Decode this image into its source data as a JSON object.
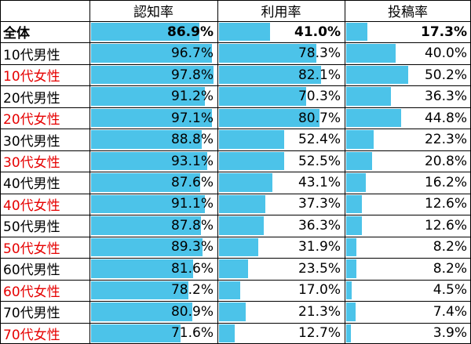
{
  "chart_data": {
    "type": "table",
    "columns": [
      "認知率",
      "利用率",
      "投稿率"
    ],
    "rows": [
      {
        "label": "全体",
        "values": [
          86.9,
          41.0,
          17.3
        ],
        "display": [
          "86.9%",
          "41.0%",
          "17.3%"
        ],
        "bold": true,
        "female": false
      },
      {
        "label": "10代男性",
        "values": [
          96.7,
          78.3,
          40.0
        ],
        "display": [
          "96.7%",
          "78.3%",
          "40.0%"
        ],
        "bold": false,
        "female": false
      },
      {
        "label": "10代女性",
        "values": [
          97.8,
          82.1,
          50.2
        ],
        "display": [
          "97.8%",
          "82.1%",
          "50.2%"
        ],
        "bold": false,
        "female": true
      },
      {
        "label": "20代男性",
        "values": [
          91.2,
          70.3,
          36.3
        ],
        "display": [
          "91.2%",
          "70.3%",
          "36.3%"
        ],
        "bold": false,
        "female": false
      },
      {
        "label": "20代女性",
        "values": [
          97.1,
          80.7,
          44.8
        ],
        "display": [
          "97.1%",
          "80.7%",
          "44.8%"
        ],
        "bold": false,
        "female": true
      },
      {
        "label": "30代男性",
        "values": [
          88.8,
          52.4,
          22.3
        ],
        "display": [
          "88.8%",
          "52.4%",
          "22.3%"
        ],
        "bold": false,
        "female": false
      },
      {
        "label": "30代女性",
        "values": [
          93.1,
          52.5,
          20.8
        ],
        "display": [
          "93.1%",
          "52.5%",
          "20.8%"
        ],
        "bold": false,
        "female": true
      },
      {
        "label": "40代男性",
        "values": [
          87.6,
          43.1,
          16.2
        ],
        "display": [
          "87.6%",
          "43.1%",
          "16.2%"
        ],
        "bold": false,
        "female": false
      },
      {
        "label": "40代女性",
        "values": [
          91.1,
          37.3,
          12.6
        ],
        "display": [
          "91.1%",
          "37.3%",
          "12.6%"
        ],
        "bold": false,
        "female": true
      },
      {
        "label": "50代男性",
        "values": [
          87.8,
          36.3,
          12.6
        ],
        "display": [
          "87.8%",
          "36.3%",
          "12.6%"
        ],
        "bold": false,
        "female": false
      },
      {
        "label": "50代女性",
        "values": [
          89.3,
          31.9,
          8.2
        ],
        "display": [
          "89.3%",
          "31.9%",
          "8.2%"
        ],
        "bold": false,
        "female": true
      },
      {
        "label": "60代男性",
        "values": [
          81.6,
          23.5,
          8.2
        ],
        "display": [
          "81.6%",
          "23.5%",
          "8.2%"
        ],
        "bold": false,
        "female": false
      },
      {
        "label": "60代女性",
        "values": [
          78.2,
          17.0,
          4.5
        ],
        "display": [
          "78.2%",
          "17.0%",
          "4.5%"
        ],
        "bold": false,
        "female": true
      },
      {
        "label": "70代男性",
        "values": [
          80.9,
          21.3,
          7.4
        ],
        "display": [
          "80.9%",
          "21.3%",
          "7.4%"
        ],
        "bold": false,
        "female": false
      },
      {
        "label": "70代女性",
        "values": [
          71.6,
          12.7,
          3.9
        ],
        "display": [
          "71.6%",
          "12.7%",
          "3.9%"
        ],
        "bold": false,
        "female": true
      }
    ],
    "bar_color": "#4cc3e9",
    "female_label_color": "#e60000",
    "bar_scale": [
      0,
      100
    ]
  }
}
